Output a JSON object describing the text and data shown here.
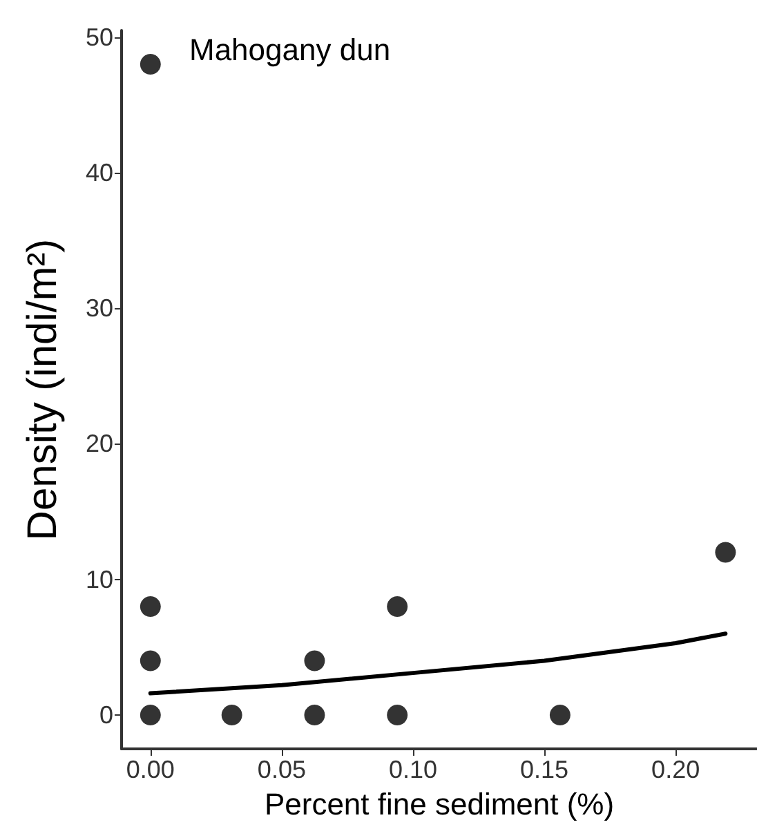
{
  "chart_data": {
    "type": "scatter",
    "title": "Mahogany dun",
    "xlabel": "Percent fine sediment (%)",
    "ylabel": "Density (indi/m²)",
    "xlim": [
      -0.011,
      0.231
    ],
    "xticks": [
      {
        "value": 0,
        "label": "0.00"
      },
      {
        "value": 0.05,
        "label": "0.05"
      },
      {
        "value": 0.1,
        "label": "0.10"
      },
      {
        "value": 0.15,
        "label": "0.15"
      },
      {
        "value": 0.2,
        "label": "0.20"
      }
    ],
    "ylim": [
      -2.5,
      50.5
    ],
    "yticks": [
      0,
      10,
      20,
      30,
      40,
      50
    ],
    "grid": false,
    "marker": "circle",
    "series": [
      {
        "color": "#000000",
        "x": [
          0,
          0,
          0,
          0,
          0.031,
          0.0625,
          0.0625,
          0.094,
          0.094,
          0.156,
          0.219
        ],
        "values": [
          0,
          4,
          8,
          48,
          0,
          0,
          4,
          0,
          8,
          0,
          12
        ]
      },
      {
        "type": "line",
        "color": "#000000",
        "marker": "none",
        "line_style": "solid",
        "x": [
          0,
          0.05,
          0.1,
          0.15,
          0.2,
          0.219
        ],
        "values": [
          1.6,
          2.2,
          3.1,
          4.0,
          5.3,
          6.0
        ]
      }
    ]
  }
}
